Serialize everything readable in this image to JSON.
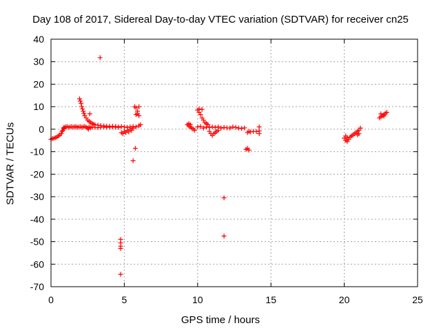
{
  "chart_data": {
    "type": "scatter",
    "title": "Day 108 of 2017, Sidereal Day-to-day VTEC variation (SDTVAR) for receiver cn25",
    "xlabel": "GPS time / hours",
    "ylabel": "SDTVAR / TECUs",
    "xlim": [
      0,
      25
    ],
    "ylim": [
      -70,
      40
    ],
    "xticks": [
      0,
      5,
      10,
      15,
      20,
      25
    ],
    "yticks": [
      -70,
      -60,
      -50,
      -40,
      -30,
      -20,
      -10,
      0,
      10,
      20,
      30,
      40
    ],
    "grid": true,
    "marker": "+",
    "series_color": "#ff0000",
    "series": [
      {
        "name": "SDTVAR",
        "points": [
          [
            0.0,
            -4.5
          ],
          [
            0.1,
            -4.2
          ],
          [
            0.2,
            -4.0
          ],
          [
            0.3,
            -3.8
          ],
          [
            0.4,
            -3.5
          ],
          [
            0.5,
            -3.0
          ],
          [
            0.6,
            -2.5
          ],
          [
            0.7,
            -2.0
          ],
          [
            0.75,
            -1.0
          ],
          [
            0.8,
            -0.5
          ],
          [
            0.85,
            0.5
          ],
          [
            0.9,
            0.2
          ],
          [
            0.9,
            0.8
          ],
          [
            1.0,
            1.0
          ],
          [
            1.1,
            1.2
          ],
          [
            1.2,
            0.8
          ],
          [
            1.3,
            1.0
          ],
          [
            1.4,
            1.1
          ],
          [
            1.5,
            0.9
          ],
          [
            1.6,
            1.0
          ],
          [
            1.7,
            1.2
          ],
          [
            1.8,
            0.8
          ],
          [
            1.9,
            1.0
          ],
          [
            2.0,
            1.1
          ],
          [
            1.95,
            13.5
          ],
          [
            2.0,
            12.5
          ],
          [
            2.05,
            11.5
          ],
          [
            2.1,
            10.0
          ],
          [
            2.15,
            9.0
          ],
          [
            2.2,
            8.0
          ],
          [
            2.25,
            7.0
          ],
          [
            2.3,
            6.0
          ],
          [
            2.4,
            5.0
          ],
          [
            2.5,
            4.0
          ],
          [
            2.6,
            3.5
          ],
          [
            2.7,
            3.0
          ],
          [
            2.8,
            2.5
          ],
          [
            2.9,
            2.2
          ],
          [
            3.0,
            2.0
          ],
          [
            3.2,
            1.8
          ],
          [
            3.4,
            1.6
          ],
          [
            3.6,
            1.5
          ],
          [
            3.8,
            1.4
          ],
          [
            4.0,
            1.3
          ],
          [
            4.2,
            1.3
          ],
          [
            4.4,
            1.2
          ],
          [
            2.1,
            0.8
          ],
          [
            2.2,
            1.0
          ],
          [
            2.3,
            1.2
          ],
          [
            2.4,
            0.9
          ],
          [
            2.5,
            0.5
          ],
          [
            2.55,
            0.0
          ],
          [
            2.6,
            1.0
          ],
          [
            2.7,
            0.6
          ],
          [
            2.8,
            0.9
          ],
          [
            3.0,
            0.8
          ],
          [
            3.2,
            0.7
          ],
          [
            3.4,
            0.9
          ],
          [
            3.6,
            1.0
          ],
          [
            3.8,
            0.8
          ],
          [
            4.0,
            0.9
          ],
          [
            4.2,
            1.0
          ],
          [
            4.4,
            0.9
          ],
          [
            4.6,
            0.8
          ],
          [
            2.65,
            6.8
          ],
          [
            3.35,
            31.8
          ],
          [
            4.6,
            1.0
          ],
          [
            4.8,
            1.2
          ],
          [
            5.0,
            1.0
          ],
          [
            5.2,
            0.8
          ],
          [
            5.4,
            1.0
          ],
          [
            5.6,
            1.2
          ],
          [
            5.8,
            1.0
          ],
          [
            6.0,
            1.5
          ],
          [
            6.1,
            2.0
          ],
          [
            4.8,
            -1.5
          ],
          [
            4.9,
            -2.0
          ],
          [
            5.0,
            -1.0
          ],
          [
            5.1,
            -1.5
          ],
          [
            5.2,
            -0.5
          ],
          [
            5.3,
            -1.2
          ],
          [
            5.4,
            0.0
          ],
          [
            5.5,
            -0.5
          ],
          [
            5.6,
            0.5
          ],
          [
            5.7,
            10.0
          ],
          [
            5.8,
            9.5
          ],
          [
            5.9,
            8.0
          ],
          [
            6.0,
            10.0
          ],
          [
            5.8,
            6.5
          ],
          [
            5.9,
            7.0
          ],
          [
            6.0,
            6.0
          ],
          [
            5.75,
            -8.5
          ],
          [
            5.6,
            -14.0
          ],
          [
            4.75,
            -49.0
          ],
          [
            4.75,
            -50.5
          ],
          [
            4.75,
            -52.0
          ],
          [
            4.75,
            -53.0
          ],
          [
            4.75,
            -64.5
          ],
          [
            9.3,
            2.0
          ],
          [
            9.4,
            1.5
          ],
          [
            9.5,
            1.0
          ],
          [
            9.6,
            0.5
          ],
          [
            9.7,
            0.0
          ],
          [
            9.8,
            -0.5
          ],
          [
            9.4,
            2.5
          ],
          [
            9.5,
            2.0
          ],
          [
            10.0,
            8.5
          ],
          [
            10.1,
            7.5
          ],
          [
            10.2,
            6.5
          ],
          [
            10.3,
            5.0
          ],
          [
            10.4,
            4.0
          ],
          [
            10.5,
            3.0
          ],
          [
            10.6,
            2.5
          ],
          [
            10.7,
            2.0
          ],
          [
            10.3,
            8.8
          ],
          [
            10.1,
            9.0
          ],
          [
            10.0,
            1.0
          ],
          [
            10.2,
            1.2
          ],
          [
            10.4,
            0.5
          ],
          [
            10.6,
            1.0
          ],
          [
            10.8,
            0.8
          ],
          [
            11.0,
            1.0
          ],
          [
            11.2,
            0.8
          ],
          [
            11.4,
            1.0
          ],
          [
            11.6,
            0.5
          ],
          [
            11.8,
            0.8
          ],
          [
            12.0,
            0.6
          ],
          [
            10.8,
            -1.0
          ],
          [
            10.9,
            -2.0
          ],
          [
            11.0,
            -2.8
          ],
          [
            11.1,
            -2.0
          ],
          [
            11.2,
            -1.5
          ],
          [
            11.3,
            -1.0
          ],
          [
            11.4,
            -0.5
          ],
          [
            12.2,
            0.5
          ],
          [
            12.4,
            1.0
          ],
          [
            12.6,
            0.8
          ],
          [
            12.8,
            0.5
          ],
          [
            13.0,
            0.3
          ],
          [
            13.2,
            0.6
          ],
          [
            13.4,
            -1.5
          ],
          [
            13.5,
            -1.0
          ],
          [
            13.6,
            -1.2
          ],
          [
            13.8,
            -1.0
          ],
          [
            14.0,
            -1.0
          ],
          [
            14.2,
            -0.8
          ],
          [
            14.2,
            1.0
          ],
          [
            14.2,
            -2.0
          ],
          [
            13.3,
            -9.0
          ],
          [
            13.4,
            -8.5
          ],
          [
            13.5,
            -9.3
          ],
          [
            11.8,
            -30.5
          ],
          [
            11.8,
            -47.5
          ],
          [
            20.0,
            -4.0
          ],
          [
            20.1,
            -5.0
          ],
          [
            20.2,
            -5.5
          ],
          [
            20.3,
            -4.5
          ],
          [
            20.4,
            -3.5
          ],
          [
            20.5,
            -3.0
          ],
          [
            20.6,
            -2.5
          ],
          [
            20.1,
            -3.0
          ],
          [
            20.2,
            -3.8
          ],
          [
            20.7,
            -2.0
          ],
          [
            20.8,
            -1.5
          ],
          [
            20.9,
            -1.0
          ],
          [
            21.0,
            -0.5
          ],
          [
            21.1,
            0.5
          ],
          [
            21.0,
            -2.0
          ],
          [
            20.9,
            -2.5
          ],
          [
            22.4,
            5.0
          ],
          [
            22.5,
            5.5
          ],
          [
            22.6,
            6.0
          ],
          [
            22.7,
            6.5
          ],
          [
            22.8,
            7.0
          ],
          [
            22.9,
            7.5
          ],
          [
            22.5,
            6.8
          ],
          [
            22.7,
            5.8
          ]
        ]
      }
    ]
  }
}
